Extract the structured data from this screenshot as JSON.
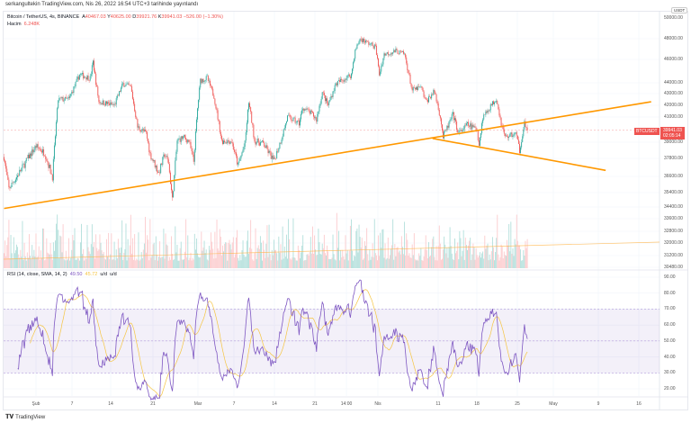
{
  "published": "serkangultekin TradingView.com, Nis 26, 2022 16:54 UTC+3 tarihinde yayınlandı",
  "legend": {
    "symbol": "Bitcoin / TetherUS, 4s, BINANCE",
    "open_prefix": "A",
    "open": "40467.03",
    "high_prefix": "Y",
    "high": "40625.00",
    "low_prefix": "D",
    "low": "39921.76",
    "close_prefix": "K",
    "close": "39941.03",
    "change": "−526.00 (−1.30%)",
    "volume_label": "Hacim",
    "volume": "6.248K"
  },
  "rsi_legend": {
    "label": "RSI (14, close, SMA, 14, 2)",
    "rsi": "49.50",
    "sma": "45.72",
    "na1": "u/d",
    "na2": "u/d"
  },
  "price_axis": {
    "currency": "USDT",
    "ticks": [
      "50000.00",
      "48000.00",
      "46000.00",
      "44000.00",
      "43000.00",
      "42000.00",
      "41000.00",
      "39000.00",
      "37800.00",
      "36600.00",
      "35400.00",
      "34400.00",
      "33600.00",
      "32800.00",
      "32000.00",
      "31200.00",
      "30480.00"
    ],
    "symbol_label": "BTCUSDT",
    "last_price": "39941.03",
    "countdown": "02:05:14"
  },
  "rsi_axis": {
    "ticks": [
      "90.00",
      "80.00",
      "70.00",
      "60.00",
      "50.00",
      "40.00",
      "30.00",
      "20.00"
    ]
  },
  "time_axis": {
    "ticks": [
      "Şub",
      "7",
      "14",
      "21",
      "Mar",
      "7",
      "14",
      "21",
      "14:00",
      "Nis",
      "11",
      "18",
      "25",
      "May",
      "9",
      "16"
    ]
  },
  "footer": {
    "brand": "TradingView"
  },
  "colors": {
    "up": "#26a69a",
    "down": "#ef5350",
    "trendline": "#ff9800",
    "rsi": "#7e57c2",
    "rsi_sma": "#f5c542",
    "rsi_band": "#7e57c2"
  },
  "chart_data": {
    "type": "candlestick",
    "symbol": "BTCUSDT",
    "interval": "4h",
    "close_path": [
      [
        "2022-01-26T12:00",
        37900
      ],
      [
        "2022-01-27T08:00",
        35700
      ],
      [
        "2022-02-01T00:00",
        38700
      ],
      [
        "2022-02-02T12:00",
        38200
      ],
      [
        "2022-02-03T20:00",
        36550
      ],
      [
        "2022-02-04T20:00",
        42500
      ],
      [
        "2022-02-06T16:00",
        42500
      ],
      [
        "2022-02-08T12:00",
        44700
      ],
      [
        "2022-02-10T08:00",
        44400
      ],
      [
        "2022-02-10T20:00",
        45800
      ],
      [
        "2022-02-11T20:00",
        42300
      ],
      [
        "2022-02-14T12:00",
        42000
      ],
      [
        "2022-02-16T00:00",
        43900
      ],
      [
        "2022-02-17T08:00",
        43600
      ],
      [
        "2022-02-18T12:00",
        40200
      ],
      [
        "2022-02-20T00:00",
        39700
      ],
      [
        "2022-02-20T16:00",
        38100
      ],
      [
        "2022-02-22T04:00",
        36800
      ],
      [
        "2022-02-23T04:00",
        38100
      ],
      [
        "2022-02-23T20:00",
        37500
      ],
      [
        "2022-02-24T12:00",
        34900
      ],
      [
        "2022-02-25T08:00",
        39100
      ],
      [
        "2022-02-26T08:00",
        39400
      ],
      [
        "2022-02-27T08:00",
        39100
      ],
      [
        "2022-02-28T04:00",
        37600
      ],
      [
        "2022-02-28T20:00",
        41700
      ],
      [
        "2022-03-01T08:00",
        44200
      ],
      [
        "2022-03-02T12:00",
        44400
      ],
      [
        "2022-03-03T16:00",
        42800
      ],
      [
        "2022-03-05T00:00",
        39100
      ],
      [
        "2022-03-06T16:00",
        39100
      ],
      [
        "2022-03-07T20:00",
        37300
      ],
      [
        "2022-03-09T00:00",
        38900
      ],
      [
        "2022-03-09T16:00",
        42300
      ],
      [
        "2022-03-10T16:00",
        39100
      ],
      [
        "2022-03-12T04:00",
        38900
      ],
      [
        "2022-03-14T00:00",
        37600
      ],
      [
        "2022-03-15T04:00",
        39100
      ],
      [
        "2022-03-16T08:00",
        41000
      ],
      [
        "2022-03-18T08:00",
        40500
      ],
      [
        "2022-03-19T00:00",
        41800
      ],
      [
        "2022-03-20T16:00",
        41200
      ],
      [
        "2022-03-21T08:00",
        40800
      ],
      [
        "2022-03-22T08:00",
        43100
      ],
      [
        "2022-03-23T08:00",
        42000
      ],
      [
        "2022-03-24T16:00",
        43900
      ],
      [
        "2022-03-27T08:00",
        44700
      ],
      [
        "2022-03-28T00:00",
        46800
      ],
      [
        "2022-03-28T20:00",
        48000
      ],
      [
        "2022-03-31T12:00",
        47200
      ],
      [
        "2022-04-01T04:00",
        44700
      ],
      [
        "2022-04-02T00:00",
        46500
      ],
      [
        "2022-04-04T00:00",
        46800
      ],
      [
        "2022-04-05T12:00",
        46500
      ],
      [
        "2022-04-06T20:00",
        43300
      ],
      [
        "2022-04-08T08:00",
        43600
      ],
      [
        "2022-04-09T04:00",
        42300
      ],
      [
        "2022-04-10T16:00",
        43200
      ],
      [
        "2022-04-11T16:00",
        41000
      ],
      [
        "2022-04-12T04:00",
        39400
      ],
      [
        "2022-04-13T20:00",
        41200
      ],
      [
        "2022-04-14T20:00",
        39700
      ],
      [
        "2022-04-16T08:00",
        40400
      ],
      [
        "2022-04-18T00:00",
        40000
      ],
      [
        "2022-04-18T08:00",
        38800
      ],
      [
        "2022-04-19T00:00",
        41000
      ],
      [
        "2022-04-20T00:00",
        41700
      ],
      [
        "2022-04-21T08:00",
        42600
      ],
      [
        "2022-04-22T04:00",
        40500
      ],
      [
        "2022-04-22T20:00",
        39400
      ],
      [
        "2022-04-24T16:00",
        39700
      ],
      [
        "2022-04-25T08:00",
        38400
      ],
      [
        "2022-04-26T04:00",
        40500
      ],
      [
        "2022-04-26T16:00",
        39941.03
      ]
    ],
    "trendlines": [
      {
        "from": [
          "2022-01-26T12:00",
          34300
        ],
        "to": [
          "2022-05-18T00:00",
          42300
        ]
      },
      {
        "from": [
          "2022-04-10T08:00",
          39300
        ],
        "to": [
          "2022-05-10T04:00",
          37000
        ]
      }
    ],
    "rsi": {
      "period": 14,
      "sma_period": 14,
      "bands": [
        70,
        50,
        30
      ],
      "ylim": [
        15,
        95
      ]
    }
  }
}
